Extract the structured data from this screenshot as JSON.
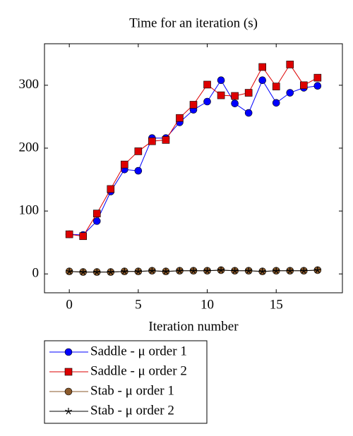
{
  "chart_data": {
    "type": "line",
    "title": "Time for an iteration (s)",
    "x_label": "Iteration number",
    "x": [
      0,
      1,
      2,
      3,
      4,
      5,
      6,
      7,
      8,
      9,
      10,
      11,
      12,
      13,
      14,
      15,
      16,
      17,
      18
    ],
    "series": [
      {
        "name": "Saddle - μ order 1",
        "color": "#0000ff",
        "marker": "circle",
        "values": [
          63,
          62,
          84,
          131,
          166,
          164,
          216,
          216,
          241,
          261,
          274,
          308,
          271,
          256,
          308,
          272,
          288,
          296,
          299
        ]
      },
      {
        "name": "Saddle - μ order 2",
        "color": "#dd0000",
        "marker": "square",
        "values": [
          63,
          60,
          96,
          135,
          174,
          195,
          211,
          213,
          248,
          269,
          301,
          284,
          283,
          288,
          329,
          298,
          333,
          300,
          312
        ]
      },
      {
        "name": "Stab - μ order 1",
        "color": "#8b5a2b",
        "marker": "circle",
        "values": [
          4,
          3,
          3,
          3,
          4,
          4,
          5,
          4,
          5,
          5,
          5,
          6,
          5,
          5,
          4,
          5,
          5,
          5,
          6
        ]
      },
      {
        "name": "Stab - μ order 2",
        "color": "#000000",
        "marker": "star",
        "values": [
          4,
          3,
          3,
          3,
          4,
          4,
          5,
          4,
          5,
          5,
          5,
          6,
          5,
          5,
          4,
          5,
          5,
          5,
          6
        ]
      }
    ],
    "xlim": [
      -1.8,
      19.8
    ],
    "ylim": [
      -30,
      366
    ],
    "xticks": [
      0,
      5,
      10,
      15
    ],
    "yticks": [
      0,
      100,
      200,
      300
    ],
    "legend": "below"
  }
}
